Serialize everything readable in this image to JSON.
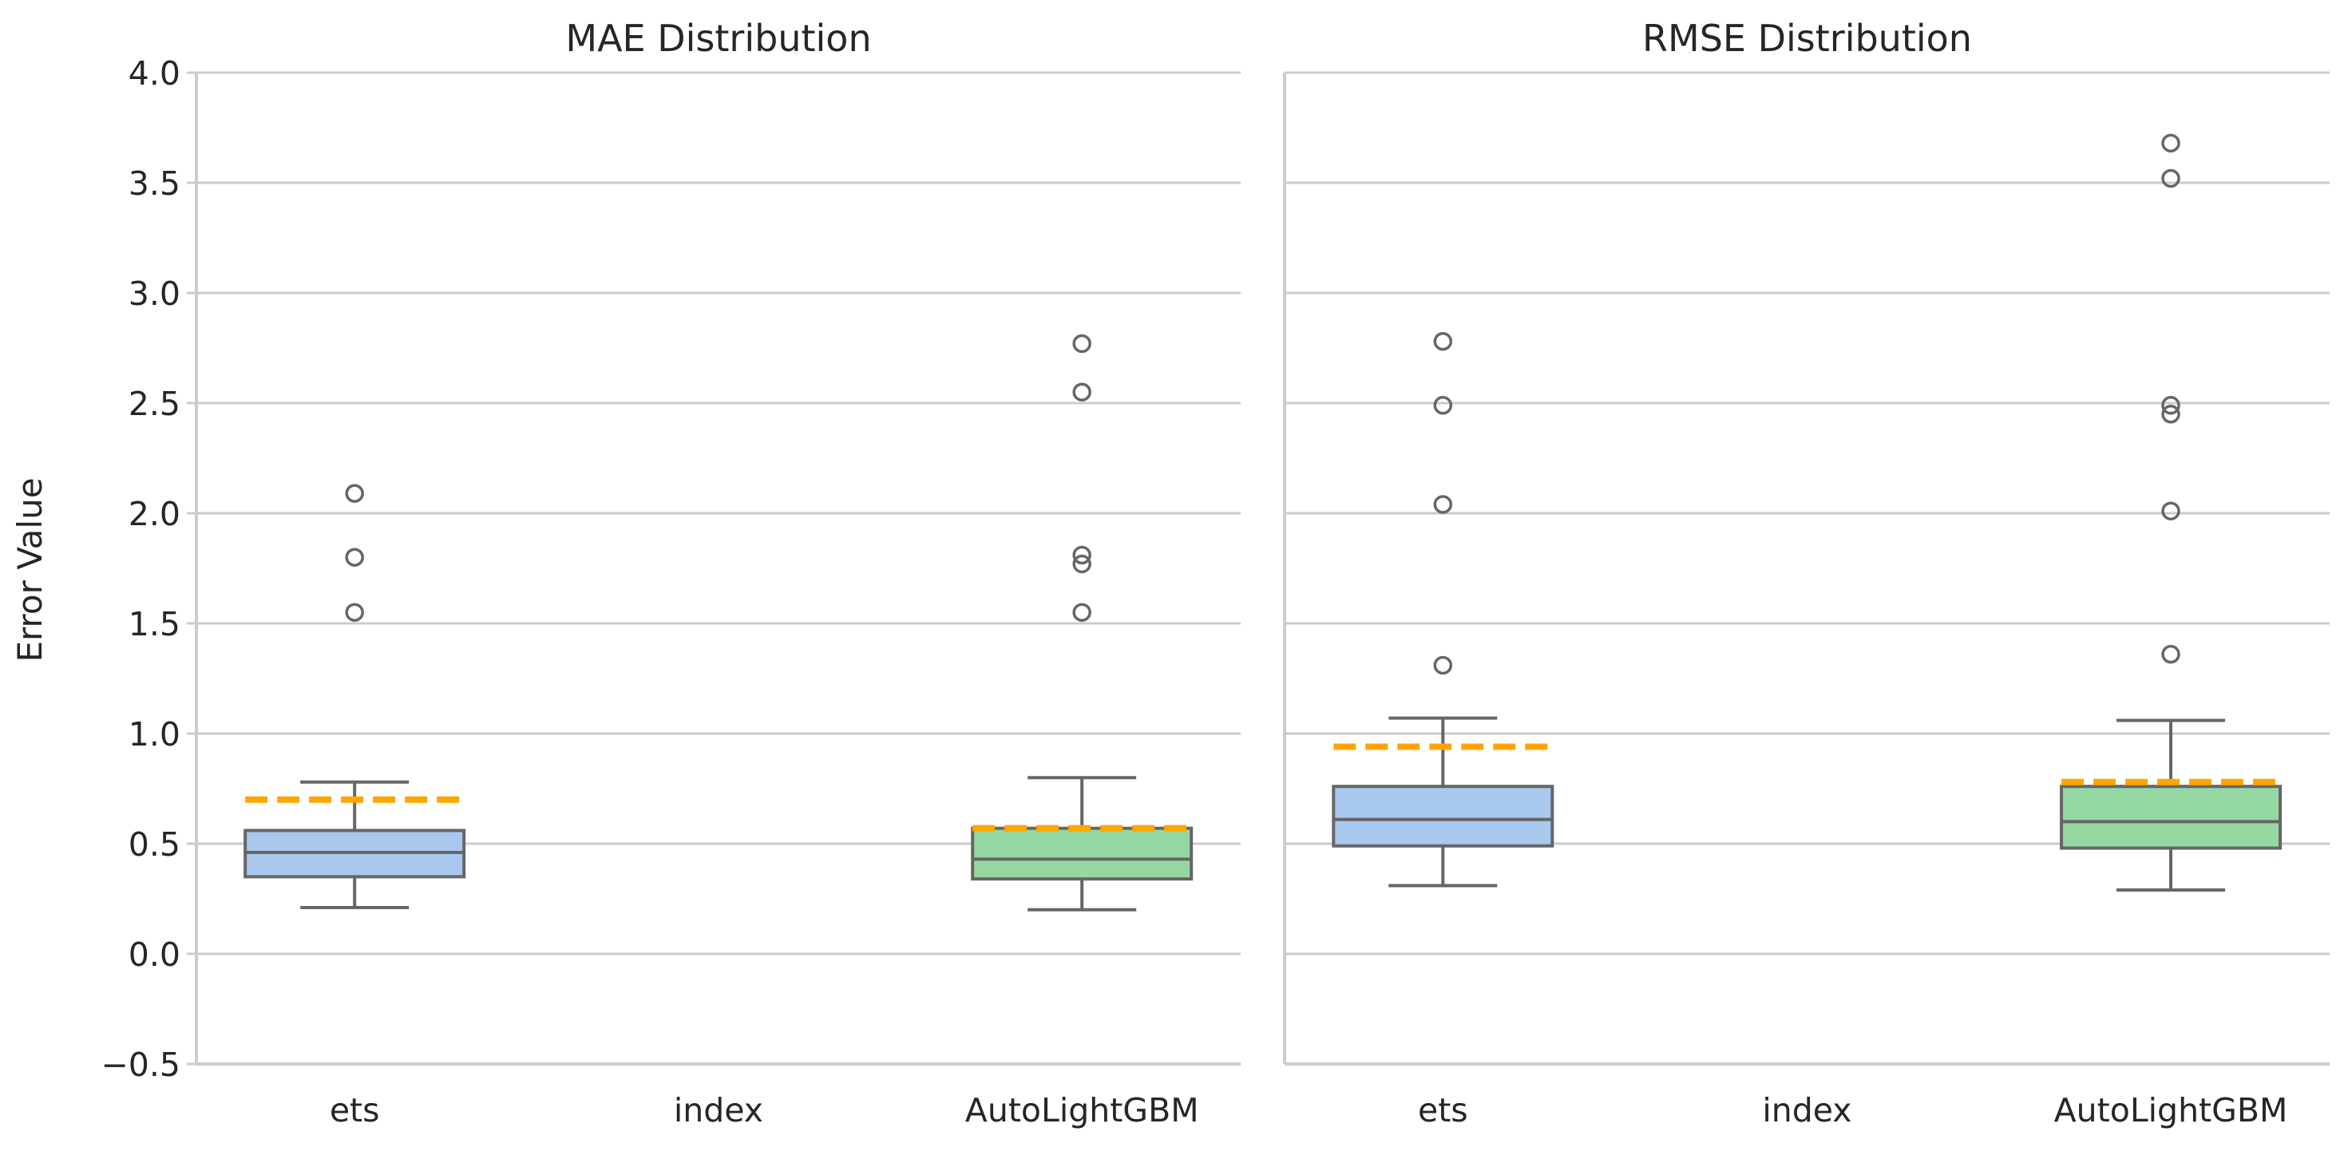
{
  "colors": {
    "background": "#ffffff",
    "grid": "#cccccc",
    "axis_line": "#cccccc",
    "box_ets": "#a8c8ee",
    "box_autolightgbm": "#96d8a2",
    "box_edge": "#666666",
    "mean_line": "#ffa500",
    "text": "#262626"
  },
  "chart_data": [
    {
      "type": "box",
      "title": "MAE Distribution",
      "xlabel": "",
      "ylabel": "Error Value",
      "ylim": [
        -0.5,
        4.0
      ],
      "yticks": [
        "−0.5",
        "0.0",
        "0.5",
        "1.0",
        "1.5",
        "2.0",
        "2.5",
        "3.0",
        "3.5",
        "4.0"
      ],
      "ytick_values": [
        -0.5,
        0.0,
        0.5,
        1.0,
        1.5,
        2.0,
        2.5,
        3.0,
        3.5,
        4.0
      ],
      "grid": true,
      "categories": [
        "ets",
        "index",
        "AutoLightGBM"
      ],
      "boxes": [
        {
          "category": "ets",
          "whisker_low": 0.21,
          "q1": 0.35,
          "median": 0.46,
          "q3": 0.56,
          "whisker_high": 0.78,
          "mean": 0.7,
          "outliers": [
            1.55,
            1.8,
            2.09
          ],
          "color": "#a8c8ee"
        },
        {
          "category": "AutoLightGBM",
          "whisker_low": 0.2,
          "q1": 0.34,
          "median": 0.43,
          "q3": 0.57,
          "whisker_high": 0.8,
          "mean": 0.57,
          "outliers": [
            1.55,
            1.77,
            1.81,
            2.55,
            2.77
          ],
          "color": "#96d8a2"
        }
      ]
    },
    {
      "type": "box",
      "title": "RMSE Distribution",
      "xlabel": "",
      "ylabel": "",
      "ylim": [
        -0.5,
        4.0
      ],
      "grid": true,
      "categories": [
        "ets",
        "index",
        "AutoLightGBM"
      ],
      "boxes": [
        {
          "category": "ets",
          "whisker_low": 0.31,
          "q1": 0.49,
          "median": 0.61,
          "q3": 0.76,
          "whisker_high": 1.07,
          "mean": 0.94,
          "outliers": [
            1.31,
            2.04,
            2.49,
            2.78
          ],
          "color": "#a8c8ee"
        },
        {
          "category": "AutoLightGBM",
          "whisker_low": 0.29,
          "q1": 0.48,
          "median": 0.6,
          "q3": 0.76,
          "whisker_high": 1.06,
          "mean": 0.78,
          "outliers": [
            1.36,
            2.01,
            2.45,
            2.49,
            3.52,
            3.68
          ],
          "color": "#96d8a2"
        }
      ]
    }
  ]
}
